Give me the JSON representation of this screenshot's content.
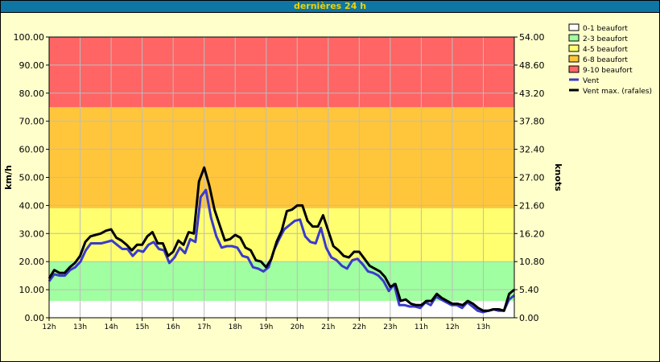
{
  "header": {
    "title": "dernières 24 h"
  },
  "chart_data": {
    "type": "line",
    "ylabel_left": "km/h",
    "ylabel_right": "knots",
    "ylim": [
      0,
      100
    ],
    "y_ticks_left": [
      "0.00",
      "10.00",
      "20.00",
      "30.00",
      "40.00",
      "50.00",
      "60.00",
      "70.00",
      "80.00",
      "90.00",
      "100.00"
    ],
    "y_ticks_right": [
      "0.00",
      "5.40",
      "10.80",
      "16.20",
      "21.60",
      "27.00",
      "32.40",
      "37.80",
      "43.20",
      "48.60",
      "54.00"
    ],
    "x_ticks": [
      "12h",
      "13h",
      "14h",
      "15h",
      "16h",
      "17h",
      "18h",
      "19h",
      "20h",
      "21h",
      "22h",
      "23h",
      "11h",
      "12h",
      "13h"
    ],
    "bands": [
      {
        "name": "0-1 beaufort",
        "from": 0,
        "to": 6,
        "color": "#ffffff"
      },
      {
        "name": "2-3 beaufort",
        "from": 6,
        "to": 20,
        "color": "#a0ffa0"
      },
      {
        "name": "4-5 beaufort",
        "from": 20,
        "to": 39,
        "color": "#ffff70"
      },
      {
        "name": "6-8 beaufort",
        "from": 39,
        "to": 75,
        "color": "#ffc63c"
      },
      {
        "name": "9-10 beaufort",
        "from": 75,
        "to": 100,
        "color": "#ff6565"
      }
    ],
    "series": [
      {
        "name": "Vent",
        "color": "#3a3acc",
        "values": [
          13,
          15.5,
          15,
          15,
          17,
          18,
          20,
          24,
          26.5,
          26.5,
          26.5,
          27,
          27.5,
          26,
          24.5,
          24.5,
          22,
          24,
          23.5,
          26,
          27,
          24.5,
          24,
          19.5,
          21.5,
          25,
          23,
          28,
          27,
          43,
          45.5,
          35.5,
          29,
          25,
          25.5,
          25.5,
          25,
          22,
          21.5,
          18,
          17.5,
          16.5,
          18,
          24,
          28,
          31.5,
          33,
          34.5,
          35,
          29,
          27,
          26.5,
          32,
          25,
          21.5,
          20.5,
          18.5,
          17.5,
          20.5,
          21,
          19,
          16.5,
          16,
          15,
          13,
          9.5,
          12,
          4.5,
          4.5,
          4,
          4,
          3.5,
          5.5,
          4.5,
          7.5,
          6.5,
          5.5,
          4.5,
          4.5,
          3.5,
          5.5,
          4,
          2.5,
          2,
          2.5,
          3,
          2.5,
          2.5,
          6.5,
          8
        ]
      },
      {
        "name": "Vent max. (rafales)",
        "color": "#000000",
        "values": [
          14,
          17,
          16,
          16,
          18,
          19.5,
          22,
          27,
          29,
          29.5,
          30,
          31,
          31.5,
          28.5,
          27.5,
          26,
          24,
          26,
          26,
          29,
          30.5,
          26.5,
          26.5,
          22,
          23.5,
          27.5,
          26,
          30.5,
          30,
          48.5,
          53.5,
          47,
          38.5,
          33,
          27.5,
          28,
          29.5,
          28.5,
          25,
          24,
          20.5,
          20,
          18,
          21,
          27,
          31,
          38,
          38.5,
          40,
          40,
          34.5,
          32.5,
          32.5,
          36.5,
          31,
          25.5,
          24,
          22,
          21.5,
          23.5,
          23.5,
          21,
          18.5,
          17.5,
          16.5,
          14.5,
          11,
          12,
          6,
          6.5,
          5,
          4.5,
          4.5,
          6,
          6,
          8.5,
          7,
          6,
          5,
          5,
          4.5,
          6,
          5,
          3.5,
          2.5,
          2.5,
          3,
          3,
          2.5,
          8.5,
          10
        ]
      }
    ]
  }
}
